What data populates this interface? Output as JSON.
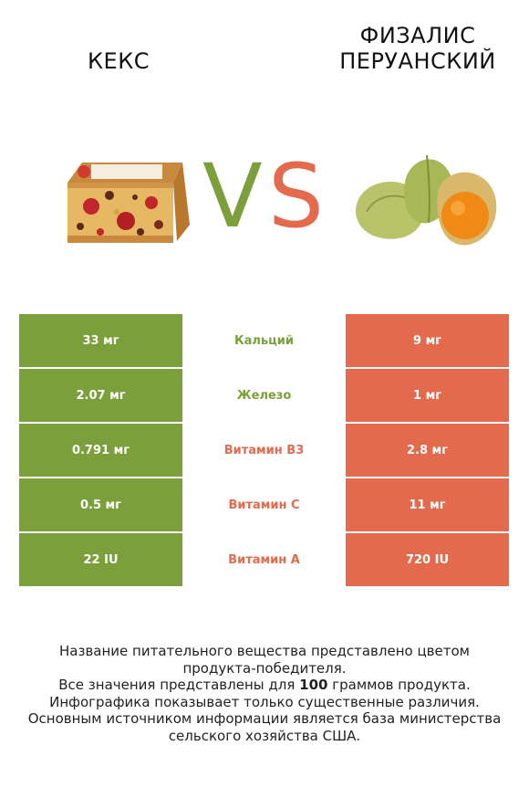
{
  "header": {
    "left_title": "КЕКС",
    "right_title_line1": "ФИЗАЛИС",
    "right_title_line2": "ПЕРУАНСКИЙ",
    "vs_v": "V",
    "vs_s": "S"
  },
  "colors": {
    "left": "#7ba03b",
    "right": "#e46a4e"
  },
  "rows": [
    {
      "left": "33 мг",
      "nutrient": "Кальций",
      "right": "9 мг",
      "winner": "left"
    },
    {
      "left": "2.07 мг",
      "nutrient": "Железо",
      "right": "1 мг",
      "winner": "left"
    },
    {
      "left": "0.791 мг",
      "nutrient": "Витамин B3",
      "right": "2.8 мг",
      "winner": "right"
    },
    {
      "left": "0.5 мг",
      "nutrient": "Витамин C",
      "right": "11 мг",
      "winner": "right"
    },
    {
      "left": "22 IU",
      "nutrient": "Витамин A",
      "right": "720 IU",
      "winner": "right"
    }
  ],
  "footer": {
    "line1": "Название питательного вещества представлено цветом",
    "line2": "продукта-победителя.",
    "line3_pre": "Все значения представлены для ",
    "line3_bold": "100",
    "line3_post": " граммов продукта.",
    "line4": "Инфографика показывает только существенные различия.",
    "line5": "Основным источником информации является база министерства",
    "line6": "сельского хозяйства США."
  }
}
